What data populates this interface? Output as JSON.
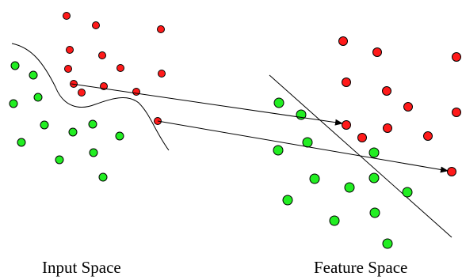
{
  "labels": {
    "input_space": "Input Space",
    "feature_space": "Feature Space"
  },
  "colors": {
    "class_a": "#ff1a1a",
    "class_b": "#22ee22",
    "stroke": "#000000",
    "background": "#ffffff"
  },
  "diagram": {
    "input_space": {
      "red_point_count": 15,
      "green_point_count": 13,
      "has_curved_boundary": true
    },
    "feature_space": {
      "red_point_count": 14,
      "green_point_count": 15,
      "has_linear_boundary": true
    },
    "mapping_arrows": 2
  }
}
